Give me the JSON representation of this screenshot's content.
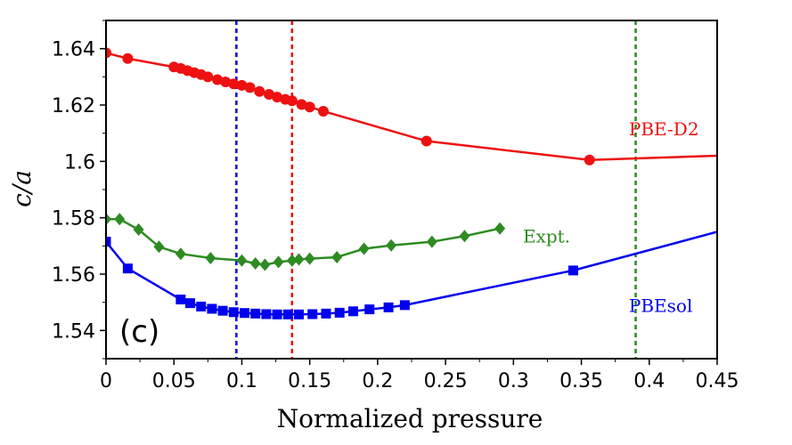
{
  "chart_data": {
    "type": "line",
    "title": "",
    "panel_label": "(c)",
    "xlabel": "Normalized pressure",
    "ylabel": "c/a",
    "xlim": [
      0,
      0.45
    ],
    "ylim": [
      1.53,
      1.65
    ],
    "x_ticks": [
      {
        "value": 0,
        "label": "0"
      },
      {
        "value": 0.05,
        "label": "0.05"
      },
      {
        "value": 0.1,
        "label": "0.1"
      },
      {
        "value": 0.15,
        "label": "0.15"
      },
      {
        "value": 0.2,
        "label": "0.2"
      },
      {
        "value": 0.25,
        "label": "0.25"
      },
      {
        "value": 0.3,
        "label": "0.3"
      },
      {
        "value": 0.35,
        "label": "0.35"
      },
      {
        "value": 0.4,
        "label": "0.4"
      },
      {
        "value": 0.45,
        "label": "0.45"
      }
    ],
    "y_ticks": [
      {
        "value": 1.54,
        "label": "1.54"
      },
      {
        "value": 1.56,
        "label": "1.56"
      },
      {
        "value": 1.58,
        "label": "1.58"
      },
      {
        "value": 1.6,
        "label": "1.6"
      },
      {
        "value": 1.62,
        "label": "1.62"
      },
      {
        "value": 1.64,
        "label": "1.64"
      }
    ],
    "vlines": [
      {
        "name": "blue-vline",
        "x": 0.096,
        "color": "#0000ee"
      },
      {
        "name": "red-vline",
        "x": 0.137,
        "color": "#ee0000"
      },
      {
        "name": "green-vline",
        "x": 0.39,
        "color": "#228b22"
      }
    ],
    "series": [
      {
        "name": "PBE-D2",
        "label": "PBE-D2",
        "color": "#ee1111",
        "marker": "circle",
        "label_pos": {
          "x": 0.385,
          "y": 1.6115
        },
        "line_x": [
          0,
          0.016,
          0.05,
          0.055,
          0.06,
          0.065,
          0.07,
          0.075,
          0.082,
          0.088,
          0.094,
          0.1,
          0.106,
          0.113,
          0.12,
          0.126,
          0.132,
          0.137,
          0.144,
          0.15,
          0.16,
          0.236,
          0.356,
          0.45
        ],
        "line_y": [
          1.6385,
          1.6365,
          1.6335,
          1.633,
          1.6322,
          1.6315,
          1.6308,
          1.63,
          1.629,
          1.6282,
          1.6275,
          1.627,
          1.6262,
          1.6248,
          1.6238,
          1.6228,
          1.622,
          1.6215,
          1.6202,
          1.6193,
          1.6178,
          1.6072,
          1.6005,
          1.602
        ],
        "x": [
          0,
          0.016,
          0.05,
          0.055,
          0.06,
          0.065,
          0.07,
          0.075,
          0.082,
          0.088,
          0.094,
          0.1,
          0.106,
          0.113,
          0.12,
          0.126,
          0.132,
          0.137,
          0.144,
          0.15,
          0.16,
          0.236,
          0.356
        ],
        "y": [
          1.6385,
          1.6365,
          1.6335,
          1.633,
          1.6322,
          1.6315,
          1.6308,
          1.63,
          1.629,
          1.6282,
          1.6275,
          1.627,
          1.6262,
          1.6248,
          1.6238,
          1.6228,
          1.622,
          1.6215,
          1.6202,
          1.6193,
          1.6178,
          1.6072,
          1.6005
        ]
      },
      {
        "name": "Expt.",
        "label": "Expt.",
        "color": "#2e8b22",
        "marker": "diamond",
        "label_pos": {
          "x": 0.307,
          "y": 1.5735
        },
        "line_x": [
          0,
          0.01,
          0.024,
          0.039,
          0.055,
          0.077,
          0.1,
          0.11,
          0.117,
          0.127,
          0.137,
          0.142,
          0.15,
          0.17,
          0.19,
          0.21,
          0.24,
          0.264,
          0.29
        ],
        "line_y": [
          1.5795,
          1.5795,
          1.5758,
          1.5697,
          1.5672,
          1.5657,
          1.5648,
          1.5638,
          1.5633,
          1.5643,
          1.5648,
          1.5652,
          1.5655,
          1.566,
          1.569,
          1.5702,
          1.5715,
          1.5735,
          1.5762
        ],
        "x": [
          0,
          0.01,
          0.024,
          0.039,
          0.055,
          0.077,
          0.1,
          0.11,
          0.117,
          0.127,
          0.137,
          0.142,
          0.15,
          0.17,
          0.19,
          0.21,
          0.24,
          0.264,
          0.29
        ],
        "y": [
          1.5795,
          1.5795,
          1.5758,
          1.5697,
          1.5672,
          1.5657,
          1.5648,
          1.5638,
          1.5633,
          1.5643,
          1.5648,
          1.5652,
          1.5655,
          1.566,
          1.569,
          1.5702,
          1.5715,
          1.5735,
          1.5762
        ]
      },
      {
        "name": "PBEsol",
        "label": "PBEsol",
        "color": "#0000ee",
        "marker": "square",
        "label_pos": {
          "x": 0.385,
          "y": 1.5488
        },
        "line_x": [
          0,
          0.016,
          0.055,
          0.062,
          0.07,
          0.078,
          0.086,
          0.094,
          0.102,
          0.11,
          0.118,
          0.126,
          0.134,
          0.142,
          0.152,
          0.162,
          0.172,
          0.182,
          0.194,
          0.208,
          0.22,
          0.344,
          0.45
        ],
        "line_y": [
          1.5715,
          1.562,
          1.551,
          1.5497,
          1.5485,
          1.5477,
          1.547,
          1.5465,
          1.5462,
          1.546,
          1.5458,
          1.5457,
          1.5457,
          1.5457,
          1.5458,
          1.546,
          1.5463,
          1.5468,
          1.5475,
          1.5482,
          1.549,
          1.5613,
          1.575
        ],
        "x": [
          0,
          0.016,
          0.055,
          0.062,
          0.07,
          0.078,
          0.086,
          0.094,
          0.102,
          0.11,
          0.118,
          0.126,
          0.134,
          0.142,
          0.152,
          0.162,
          0.172,
          0.182,
          0.194,
          0.208,
          0.22,
          0.344
        ],
        "y": [
          1.5715,
          1.562,
          1.551,
          1.5497,
          1.5485,
          1.5477,
          1.547,
          1.5465,
          1.5462,
          1.546,
          1.5458,
          1.5457,
          1.5457,
          1.5457,
          1.5458,
          1.546,
          1.5463,
          1.5468,
          1.5475,
          1.5482,
          1.549,
          1.5613
        ]
      }
    ]
  }
}
